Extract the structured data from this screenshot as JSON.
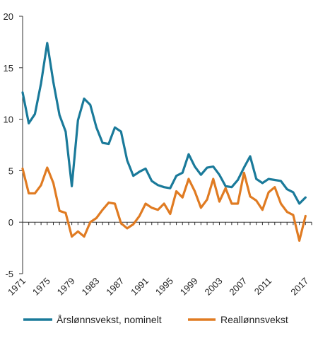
{
  "chart_data": {
    "type": "line",
    "title": "",
    "xlabel": "",
    "ylabel": "",
    "ylim": [
      -5,
      20
    ],
    "yticks": [
      20,
      15,
      10,
      5,
      0,
      -5
    ],
    "xlim": [
      1971,
      2018
    ],
    "xticks": [
      1971,
      1975,
      1979,
      1983,
      1987,
      1991,
      1995,
      1999,
      2003,
      2007,
      2011,
      2017
    ],
    "grid": false,
    "legend_position": "bottom",
    "x": [
      1971,
      1972,
      1973,
      1974,
      1975,
      1976,
      1977,
      1978,
      1979,
      1980,
      1981,
      1982,
      1983,
      1984,
      1985,
      1986,
      1987,
      1988,
      1989,
      1990,
      1991,
      1992,
      1993,
      1994,
      1995,
      1996,
      1997,
      1998,
      1999,
      2000,
      2001,
      2002,
      2003,
      2004,
      2005,
      2006,
      2007,
      2008,
      2009,
      2010,
      2011,
      2012,
      2013,
      2014,
      2015,
      2016,
      2017
    ],
    "series": [
      {
        "name": "Årslønnsvekst, nominelt",
        "color": "#1a7a9a",
        "values": [
          12.6,
          9.6,
          10.5,
          13.5,
          17.4,
          13.6,
          10.4,
          8.8,
          3.5,
          9.9,
          12.0,
          11.4,
          9.2,
          7.7,
          7.6,
          9.2,
          8.8,
          6.0,
          4.5,
          4.9,
          5.2,
          4.0,
          3.6,
          3.4,
          3.3,
          4.5,
          4.8,
          6.6,
          5.4,
          4.6,
          5.3,
          5.4,
          4.6,
          3.5,
          3.4,
          4.1,
          5.3,
          6.4,
          4.2,
          3.8,
          4.2,
          4.1,
          4.0,
          3.2,
          2.9,
          1.8,
          2.4
        ]
      },
      {
        "name": "Reallønnsvekst",
        "color": "#e07b22",
        "values": [
          5.2,
          2.8,
          2.8,
          3.6,
          5.3,
          3.8,
          1.1,
          0.9,
          -1.4,
          -0.9,
          -1.4,
          0.0,
          0.4,
          1.2,
          1.9,
          1.8,
          -0.1,
          -0.6,
          -0.2,
          0.6,
          1.8,
          1.4,
          1.2,
          1.8,
          0.8,
          3.0,
          2.4,
          4.2,
          3.0,
          1.4,
          2.2,
          4.2,
          2.0,
          3.3,
          1.8,
          1.8,
          4.8,
          2.5,
          2.1,
          1.2,
          2.9,
          3.4,
          1.8,
          1.0,
          0.7,
          -1.8,
          0.6
        ]
      }
    ]
  }
}
